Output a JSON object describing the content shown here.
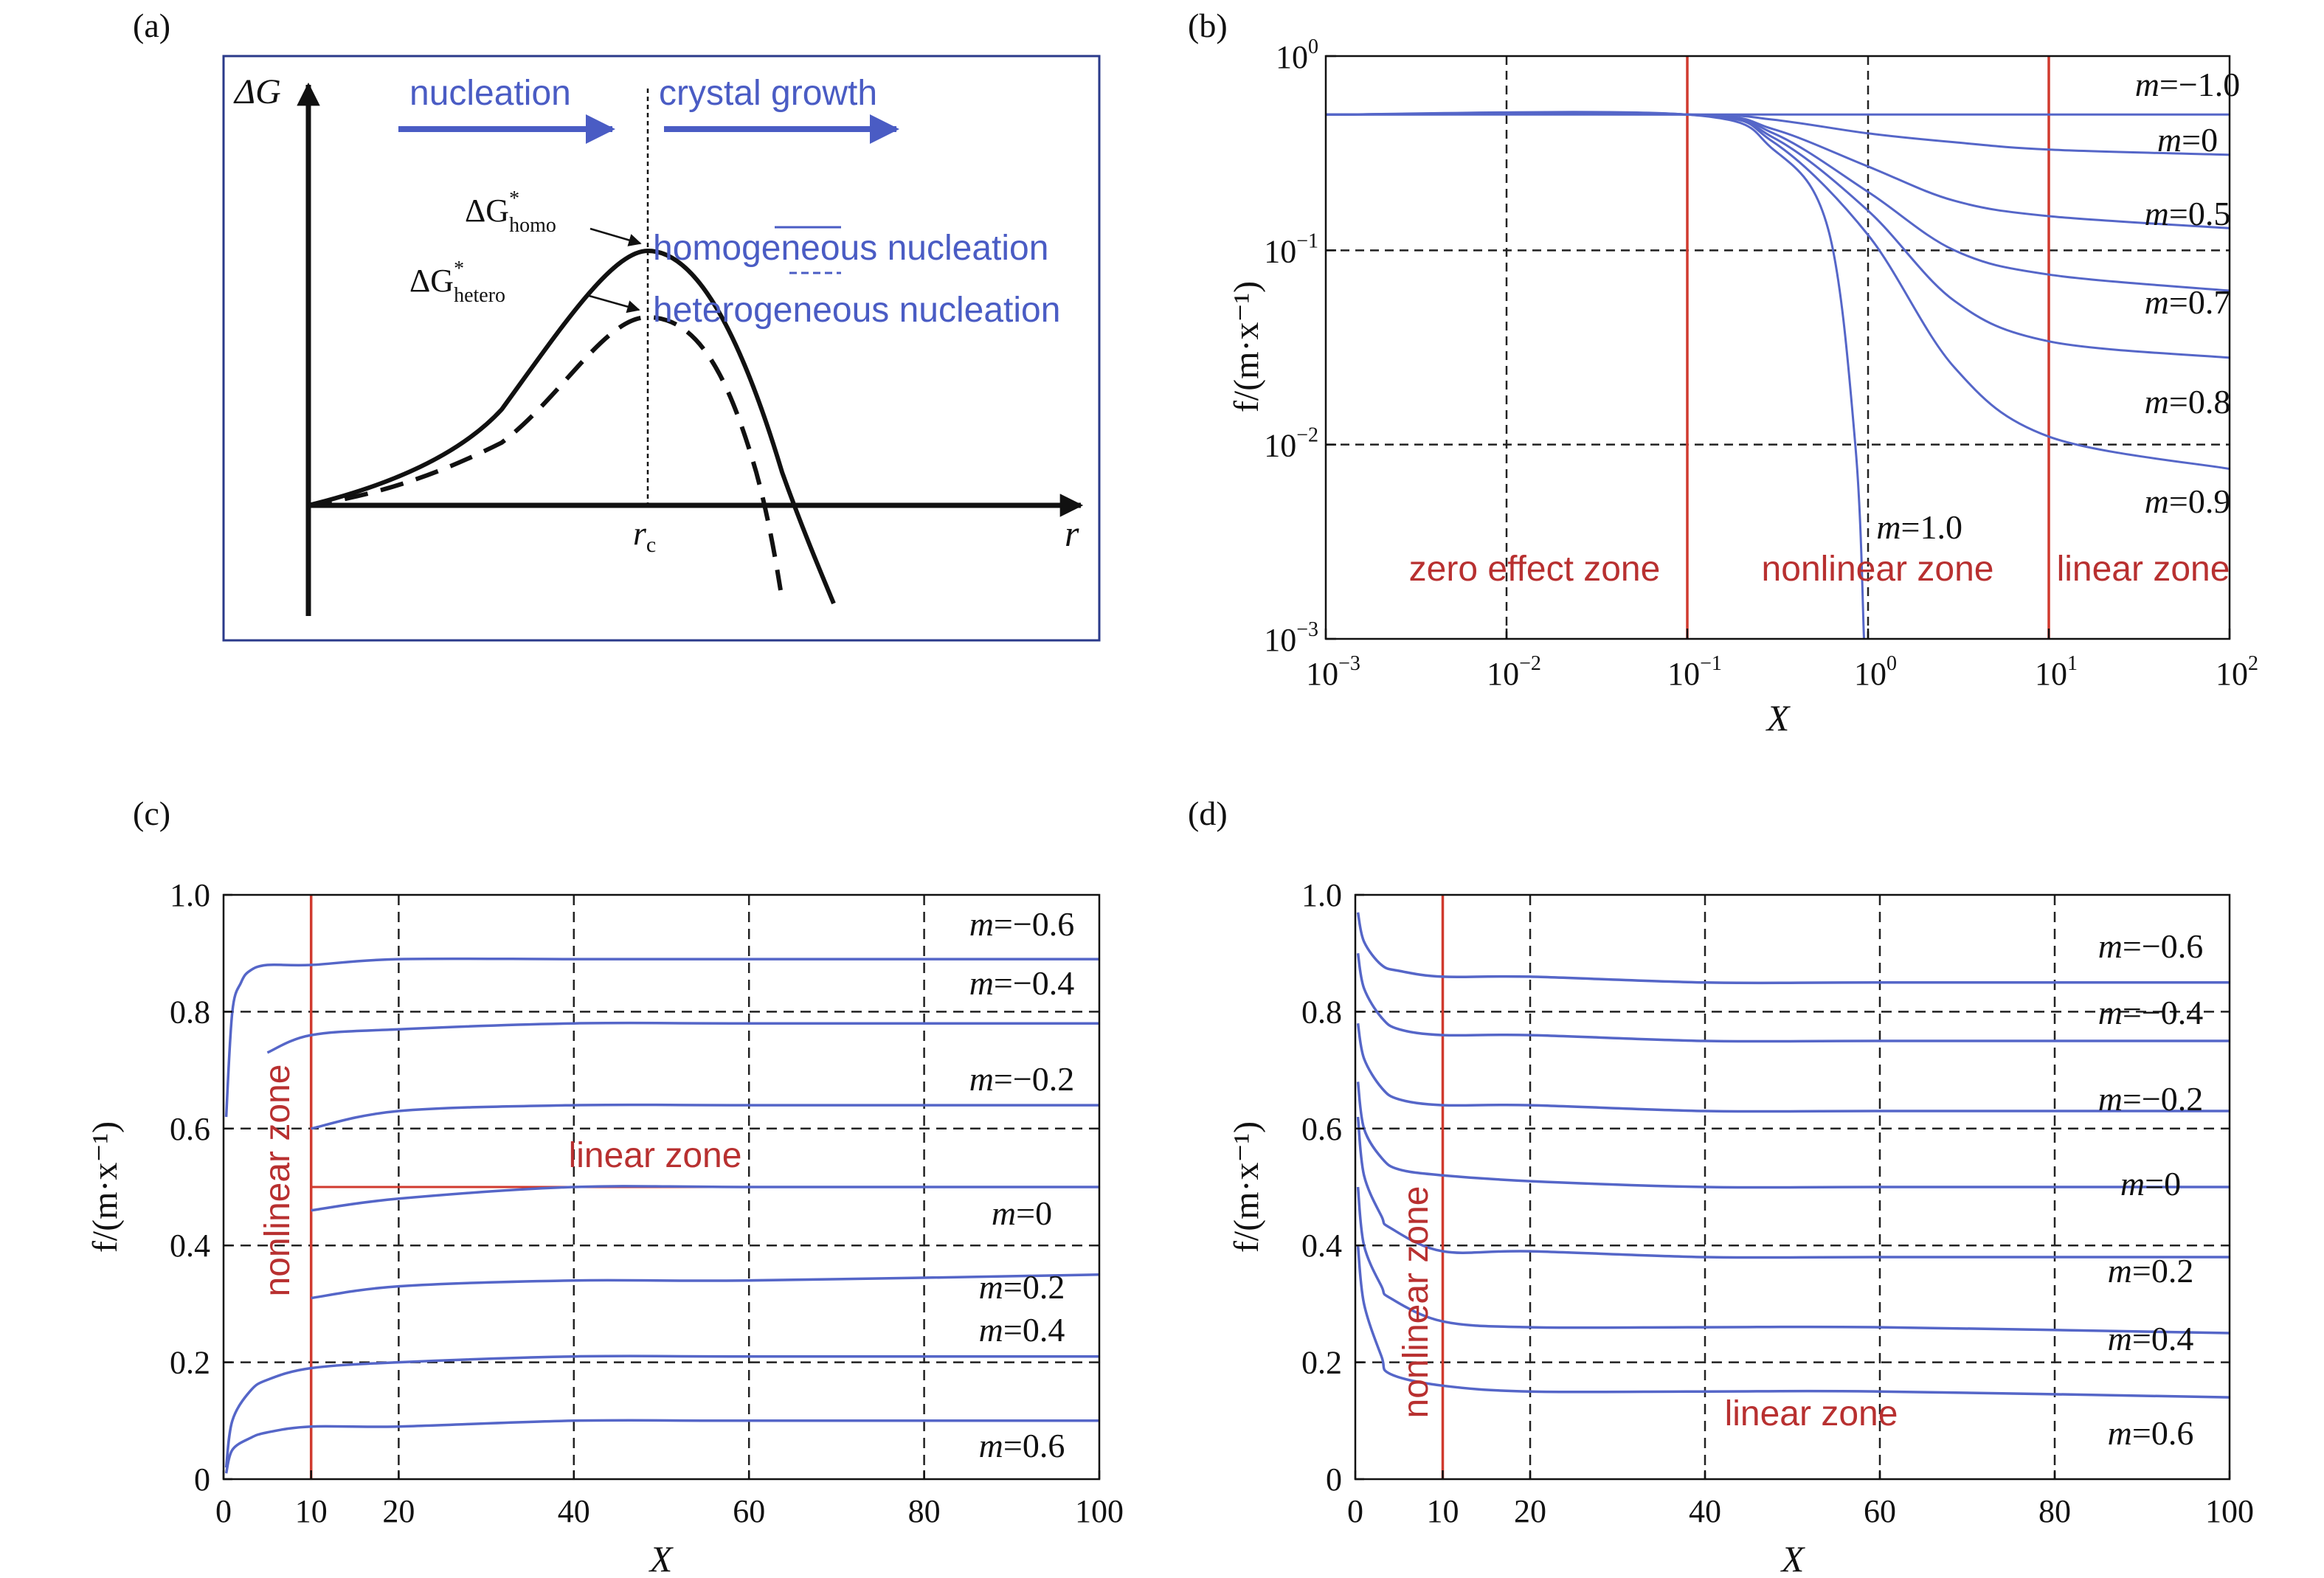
{
  "panels": {
    "a": {
      "label": "(a)"
    },
    "b": {
      "label": "(b)"
    },
    "c": {
      "label": "(c)"
    },
    "d": {
      "label": "(d)"
    }
  },
  "colors": {
    "blue": "#4a5cc4",
    "curveBlue": "#5566c8",
    "red": "#d03a2e",
    "zoneText": "#b83030",
    "black": "#111111",
    "frameBlue": "#2a3a8a"
  },
  "chart_data": [
    {
      "panel": "a",
      "type": "line",
      "title": "",
      "xlabel": "r",
      "ylabel": "ΔG",
      "arrows": [
        "nucleation",
        "crystal growth"
      ],
      "critical_label": "r",
      "critical_sub": "c",
      "annotations": {
        "homo": {
          "main": "ΔG",
          "sup": "*",
          "sub": "homo"
        },
        "hetero": {
          "main": "ΔG",
          "sup": "*",
          "sub": "hetero"
        }
      },
      "series": [
        {
          "name": "homogeneous nucleation",
          "style": "solid",
          "x": [
            0,
            0.12,
            0.25,
            0.4,
            0.5,
            0.6,
            0.7,
            0.78,
            0.85,
            0.92
          ],
          "y": [
            0,
            0.08,
            0.25,
            0.6,
            1.0,
            0.8,
            0.35,
            0.0,
            -0.25,
            -0.45
          ]
        },
        {
          "name": "heterogeneous nucleation",
          "style": "dashed",
          "x": [
            0,
            0.12,
            0.25,
            0.4,
            0.5,
            0.58,
            0.65,
            0.7,
            0.74
          ],
          "y": [
            0,
            0.05,
            0.18,
            0.5,
            0.75,
            0.55,
            0.15,
            -0.12,
            -0.35
          ]
        }
      ]
    },
    {
      "panel": "b",
      "type": "line",
      "title": "",
      "xlabel": "X",
      "ylabel": "f/(m·x⁻¹)",
      "xscale": "log",
      "yscale": "log",
      "xlim": [
        0.001,
        100
      ],
      "ylim": [
        0.001,
        1
      ],
      "xticks": [
        "10⁻³",
        "10⁻²",
        "10⁻¹",
        "10⁰",
        "10¹",
        "10²"
      ],
      "yticks": [
        "10⁻³",
        "10⁻²",
        "10⁻¹",
        "10⁰"
      ],
      "zones": [
        "zero effect zone",
        "nonlinear zone",
        "linear zone"
      ],
      "series": [
        {
          "name": "m=−1.0",
          "x": [
            0.001,
            0.1,
            1,
            10,
            100
          ],
          "y": [
            0.5,
            0.5,
            0.5,
            0.5,
            0.5
          ]
        },
        {
          "name": "m=0",
          "x": [
            0.001,
            0.1,
            0.3,
            1,
            3,
            10,
            100
          ],
          "y": [
            0.5,
            0.5,
            0.47,
            0.4,
            0.36,
            0.33,
            0.31
          ]
        },
        {
          "name": "m=0.5",
          "x": [
            0.001,
            0.1,
            0.3,
            1,
            3,
            10,
            100
          ],
          "y": [
            0.5,
            0.5,
            0.42,
            0.27,
            0.18,
            0.15,
            0.13
          ]
        },
        {
          "name": "m=0.7",
          "x": [
            0.001,
            0.1,
            0.3,
            1,
            3,
            10,
            100
          ],
          "y": [
            0.5,
            0.5,
            0.4,
            0.2,
            0.1,
            0.075,
            0.062
          ]
        },
        {
          "name": "m=0.8",
          "x": [
            0.001,
            0.1,
            0.3,
            1,
            3,
            10,
            100
          ],
          "y": [
            0.5,
            0.5,
            0.38,
            0.16,
            0.055,
            0.034,
            0.028
          ]
        },
        {
          "name": "m=0.9",
          "x": [
            0.001,
            0.1,
            0.3,
            1,
            3,
            10,
            100
          ],
          "y": [
            0.5,
            0.5,
            0.36,
            0.12,
            0.025,
            0.011,
            0.0075
          ]
        },
        {
          "name": "m=1.0",
          "x": [
            0.001,
            0.1,
            0.3,
            0.6,
            0.85,
            0.95
          ],
          "y": [
            0.5,
            0.5,
            0.33,
            0.13,
            0.01,
            0.001
          ]
        }
      ]
    },
    {
      "panel": "c",
      "type": "line",
      "title": "",
      "xlabel": "X",
      "ylabel": "f/(m·x⁻¹)",
      "xlim": [
        0,
        100
      ],
      "ylim": [
        0,
        1.0
      ],
      "xticks": [
        "0",
        "10",
        "20",
        "40",
        "60",
        "80",
        "100"
      ],
      "yticks": [
        "0",
        "0.2",
        "0.4",
        "0.6",
        "0.8",
        "1.0"
      ],
      "zones": [
        "nonlinear zone",
        "linear zone"
      ],
      "series": [
        {
          "name": "m=−0.6",
          "x": [
            0.3,
            1,
            2,
            3,
            5,
            10,
            20,
            40,
            60,
            100
          ],
          "y": [
            0.62,
            0.8,
            0.85,
            0.87,
            0.88,
            0.88,
            0.89,
            0.89,
            0.89,
            0.89
          ]
        },
        {
          "name": "m=−0.4",
          "x": [
            5,
            10,
            20,
            40,
            60,
            100
          ],
          "y": [
            0.73,
            0.76,
            0.77,
            0.78,
            0.78,
            0.78
          ]
        },
        {
          "name": "m=−0.2",
          "x": [
            10,
            20,
            40,
            60,
            100
          ],
          "y": [
            0.6,
            0.63,
            0.64,
            0.64,
            0.64
          ]
        },
        {
          "name": "m=0",
          "x": [
            10,
            20,
            40,
            60,
            100
          ],
          "y": [
            0.46,
            0.48,
            0.5,
            0.5,
            0.5
          ]
        },
        {
          "name": "m=0.2",
          "x": [
            10,
            20,
            40,
            60,
            100
          ],
          "y": [
            0.31,
            0.33,
            0.34,
            0.34,
            0.35
          ]
        },
        {
          "name": "m=0.4",
          "x": [
            0.3,
            1,
            3,
            5,
            10,
            20,
            40,
            60,
            100
          ],
          "y": [
            0.02,
            0.1,
            0.15,
            0.17,
            0.19,
            0.2,
            0.21,
            0.21,
            0.21
          ]
        },
        {
          "name": "m=0.6",
          "x": [
            0.3,
            1,
            3,
            5,
            10,
            20,
            40,
            60,
            100
          ],
          "y": [
            0.01,
            0.05,
            0.07,
            0.08,
            0.09,
            0.09,
            0.1,
            0.1,
            0.1
          ]
        }
      ]
    },
    {
      "panel": "d",
      "type": "line",
      "title": "",
      "xlabel": "X",
      "ylabel": "f/(m·x⁻¹)",
      "xlim": [
        0,
        100
      ],
      "ylim": [
        0,
        1.0
      ],
      "xticks": [
        "0",
        "10",
        "20",
        "40",
        "60",
        "80",
        "100"
      ],
      "yticks": [
        "0",
        "0.2",
        "0.4",
        "0.6",
        "0.8",
        "1.0"
      ],
      "zones": [
        "nonlinear zone",
        "linear zone"
      ],
      "series": [
        {
          "name": "m=−0.6",
          "x": [
            0.3,
            1,
            3,
            5,
            10,
            20,
            40,
            60,
            100
          ],
          "y": [
            0.97,
            0.92,
            0.88,
            0.87,
            0.86,
            0.86,
            0.85,
            0.85,
            0.85
          ]
        },
        {
          "name": "m=−0.4",
          "x": [
            0.3,
            1,
            3,
            5,
            10,
            20,
            40,
            60,
            100
          ],
          "y": [
            0.9,
            0.84,
            0.79,
            0.77,
            0.76,
            0.76,
            0.75,
            0.75,
            0.75
          ]
        },
        {
          "name": "m=−0.2",
          "x": [
            0.3,
            1,
            3,
            5,
            10,
            20,
            40,
            60,
            100
          ],
          "y": [
            0.78,
            0.72,
            0.67,
            0.65,
            0.64,
            0.64,
            0.63,
            0.63,
            0.63
          ]
        },
        {
          "name": "m=0",
          "x": [
            0.3,
            1,
            3,
            5,
            10,
            20,
            40,
            60,
            100
          ],
          "y": [
            0.68,
            0.6,
            0.55,
            0.53,
            0.52,
            0.51,
            0.5,
            0.5,
            0.5
          ]
        },
        {
          "name": "m=0.2",
          "x": [
            0.3,
            1,
            3,
            4,
            10,
            20,
            40,
            60,
            100
          ],
          "y": [
            0.62,
            0.52,
            0.45,
            0.43,
            0.39,
            0.39,
            0.38,
            0.38,
            0.38
          ]
        },
        {
          "name": "m=0.4",
          "x": [
            0.3,
            1,
            3,
            4,
            10,
            20,
            40,
            60,
            100
          ],
          "y": [
            0.5,
            0.4,
            0.33,
            0.31,
            0.27,
            0.26,
            0.26,
            0.26,
            0.25
          ]
        },
        {
          "name": "m=0.6",
          "x": [
            0.3,
            1,
            3,
            4,
            10,
            20,
            40,
            60,
            100
          ],
          "y": [
            0.4,
            0.3,
            0.21,
            0.18,
            0.16,
            0.15,
            0.15,
            0.15,
            0.14
          ]
        }
      ]
    }
  ]
}
